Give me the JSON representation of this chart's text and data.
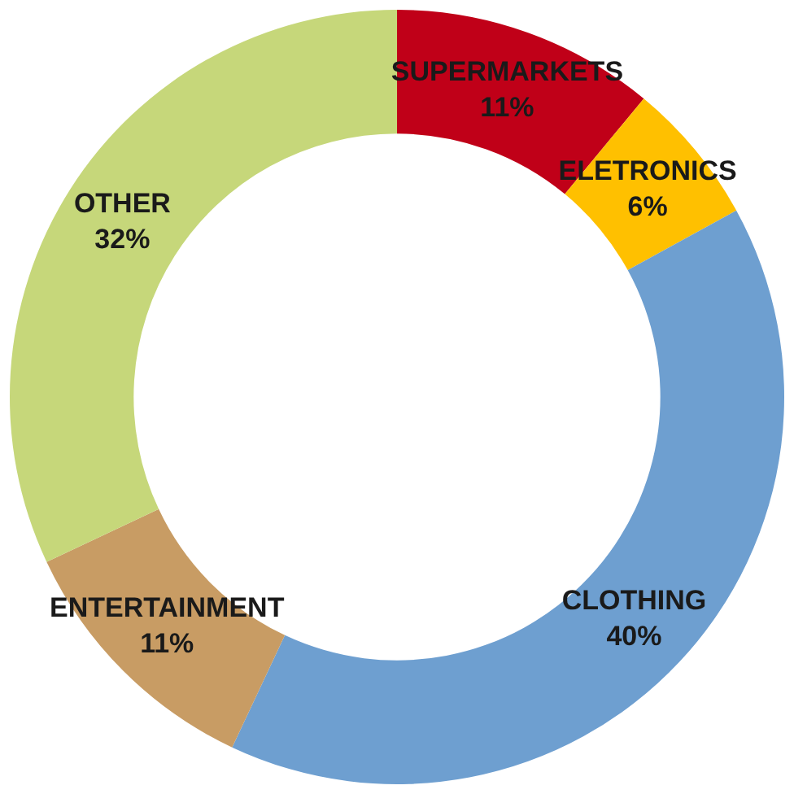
{
  "chart_data": {
    "type": "donut",
    "categories": [
      "SUPERMARKETS",
      "ELETRONICS",
      "CLOTHING",
      "ENTERTAINMENT",
      "OTHER"
    ],
    "values": [
      11,
      6,
      40,
      11,
      32
    ],
    "colors": [
      "#c00018",
      "#ffc000",
      "#6e9fd0",
      "#c89c64",
      "#c6d77a"
    ],
    "value_labels": [
      "11%",
      "6%",
      "40%",
      "11%",
      "32%"
    ],
    "legend": false
  }
}
